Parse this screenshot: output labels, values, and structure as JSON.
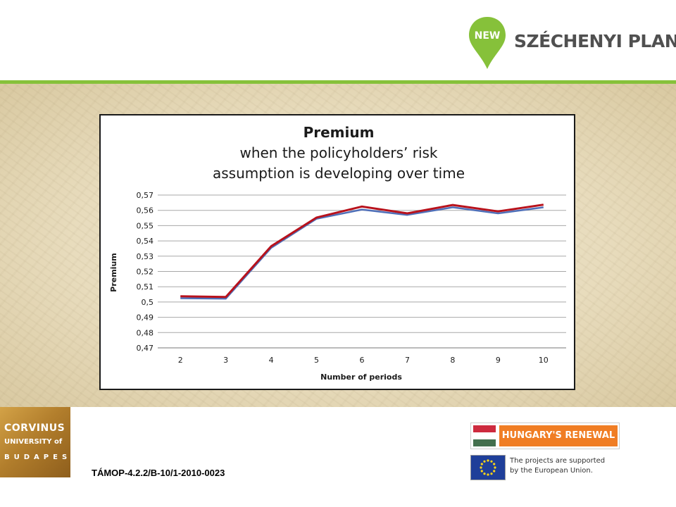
{
  "logo": {
    "pin_text": "NEW",
    "wordmark": "SZÉCHENYI PLAN",
    "colors": {
      "green": "#86c13a",
      "gray": "#505050"
    }
  },
  "footer": {
    "university": {
      "line1": "CORVINUS",
      "line2": "UNIVERSITY of",
      "line3": "BUDAPEST"
    },
    "project_code": "TÁMOP-4.2.2/B-10/1-2010-0023",
    "renewal_label": "HUNGARY'S RENEWAL",
    "eu_support_line1": "The projects are supported",
    "eu_support_line2": "by the European Union."
  },
  "chart_data": {
    "type": "line",
    "title": "Premium",
    "subtitle_line1": "when the policyholders’ risk",
    "subtitle_line2": "assumption is developing over time",
    "xlabel": "Number of periods",
    "ylabel": "Premium",
    "categories": [
      "2",
      "3",
      "4",
      "5",
      "6",
      "7",
      "8",
      "9",
      "10"
    ],
    "y_ticks": [
      "0,47",
      "0,48",
      "0,49",
      "0,5",
      "0,51",
      "0,52",
      "0,53",
      "0,54",
      "0,55",
      "0,56",
      "0,57"
    ],
    "ylim": [
      0.47,
      0.57
    ],
    "grid": true,
    "legend": "none",
    "series": [
      {
        "color": "#4f6fb8",
        "values": [
          0.5025,
          0.5022,
          0.5355,
          0.5545,
          0.5605,
          0.557,
          0.562,
          0.558,
          0.562
        ]
      },
      {
        "color": "#b8121c",
        "values": [
          0.5038,
          0.5033,
          0.5365,
          0.5553,
          0.5625,
          0.558,
          0.5635,
          0.5593,
          0.5637
        ]
      }
    ]
  }
}
